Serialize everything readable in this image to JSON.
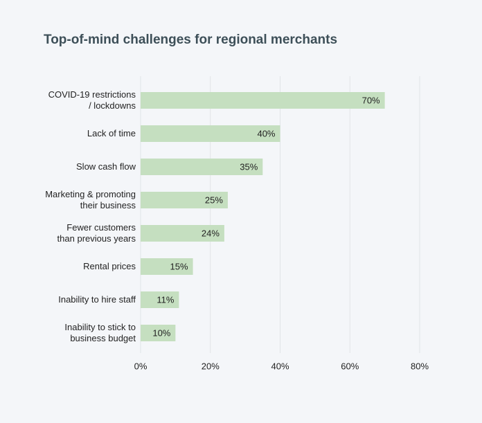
{
  "chart_data": {
    "type": "bar",
    "orientation": "horizontal",
    "title": "Top-of-mind challenges for regional merchants",
    "categories": [
      "COVID-19 restrictions\n/ lockdowns",
      "Lack of time",
      "Slow cash flow",
      "Marketing & promoting\ntheir business",
      "Fewer customers\nthan previous years",
      "Rental prices",
      "Inability to hire staff",
      "Inability to stick to\nbusiness budget"
    ],
    "values": [
      70,
      40,
      35,
      25,
      24,
      15,
      11,
      10
    ],
    "value_labels": [
      "70%",
      "40%",
      "35%",
      "25%",
      "24%",
      "15%",
      "11%",
      "10%"
    ],
    "color": "#c5dfc0",
    "xlim": [
      0,
      80
    ],
    "xticks": [
      {
        "value": 0,
        "label": "0%"
      },
      {
        "value": 20,
        "label": "20%"
      },
      {
        "value": 40,
        "label": "40%"
      },
      {
        "value": 60,
        "label": "60%"
      },
      {
        "value": 80,
        "label": "80%"
      }
    ],
    "grid": true
  }
}
